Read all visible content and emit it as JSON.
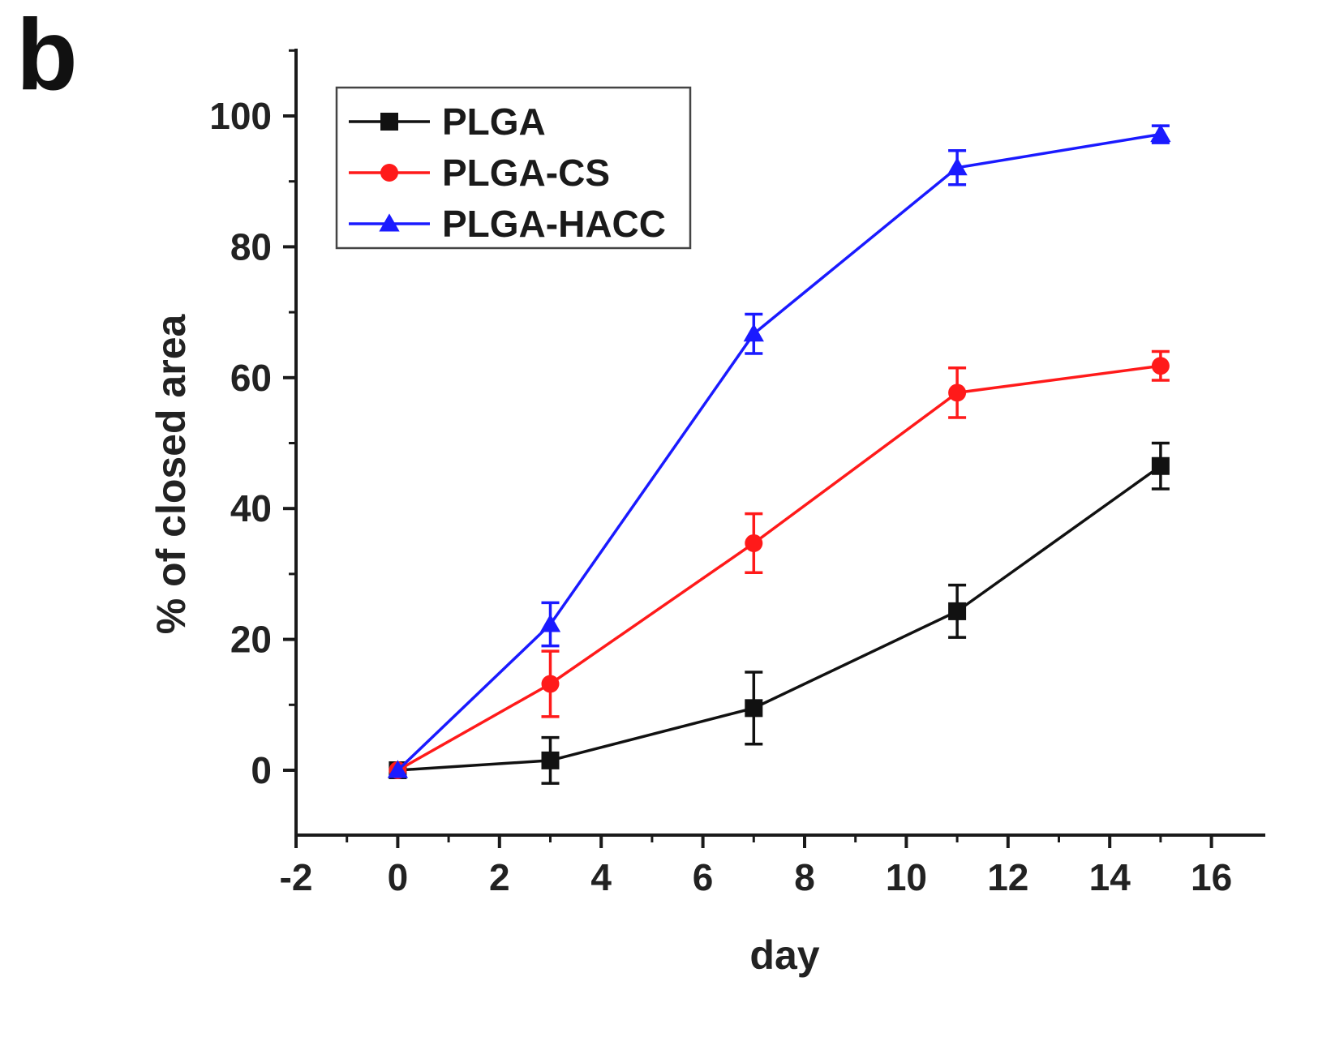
{
  "panel_label": "b",
  "chart_data": {
    "type": "line",
    "xlabel": "day",
    "ylabel": "% of closed area",
    "xlim": [
      -2,
      17
    ],
    "ylim": [
      -10,
      110
    ],
    "xticks": [
      -2,
      0,
      2,
      4,
      6,
      8,
      10,
      12,
      14,
      16
    ],
    "yticks": [
      0,
      20,
      40,
      60,
      80,
      100
    ],
    "x_minor_step": 1,
    "y_minor_step": 10,
    "legend_position": "top-left",
    "grid": false,
    "series": [
      {
        "name": "PLGA",
        "color": "#111111",
        "marker": "square",
        "x": [
          0,
          3,
          7,
          11,
          15
        ],
        "y": [
          0,
          1.5,
          9.5,
          24.3,
          46.5
        ],
        "error": [
          0,
          3.5,
          5.5,
          4.0,
          3.5
        ]
      },
      {
        "name": "PLGA-CS",
        "color": "#ff1a1a",
        "marker": "circle",
        "x": [
          0,
          3,
          7,
          11,
          15
        ],
        "y": [
          0,
          13.2,
          34.7,
          57.7,
          61.8
        ],
        "error": [
          0,
          5.0,
          4.5,
          3.8,
          2.2
        ]
      },
      {
        "name": "PLGA-HACC",
        "color": "#1a1aff",
        "marker": "triangle",
        "x": [
          0,
          3,
          7,
          11,
          15
        ],
        "y": [
          0,
          22.3,
          66.7,
          92.1,
          97.2
        ],
        "error": [
          0,
          3.3,
          3.0,
          2.6,
          1.3
        ]
      }
    ]
  }
}
